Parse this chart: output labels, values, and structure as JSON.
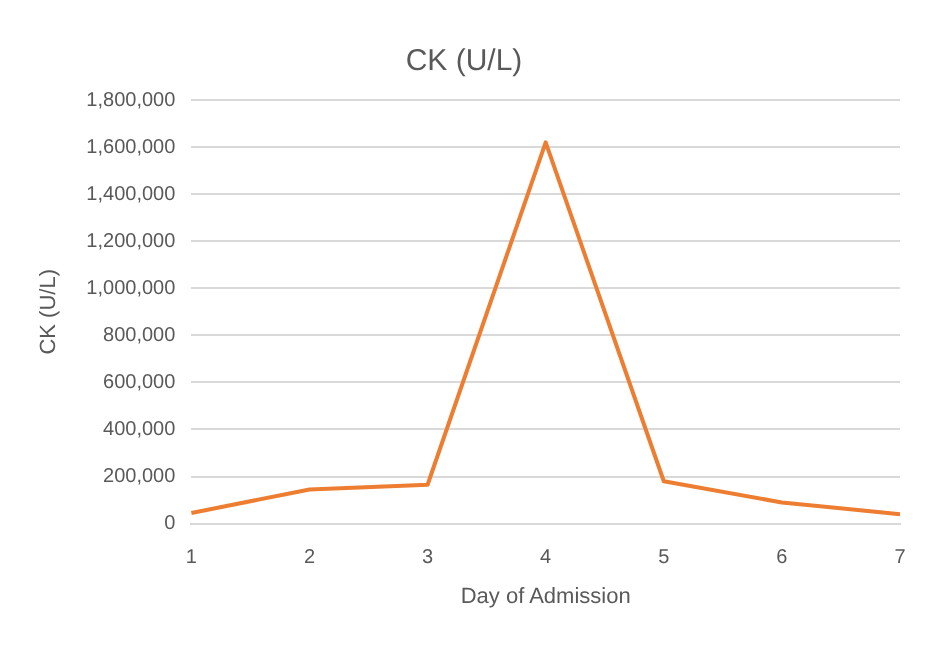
{
  "chart_data": {
    "type": "line",
    "title": "CK (U/L)",
    "xlabel": "Day of Admission",
    "ylabel": "CK (U/L)",
    "categories": [
      "1",
      "2",
      "3",
      "4",
      "5",
      "6",
      "7"
    ],
    "series": [
      {
        "color": "#ed7d31",
        "values": [
          45000,
          145000,
          165000,
          1620000,
          180000,
          90000,
          40000
        ]
      }
    ],
    "ylim": [
      0,
      1800000
    ],
    "yticks": [
      {
        "value": 0,
        "label": "0"
      },
      {
        "value": 200000,
        "label": "200,000"
      },
      {
        "value": 400000,
        "label": "400,000"
      },
      {
        "value": 600000,
        "label": "600,000"
      },
      {
        "value": 800000,
        "label": "800,000"
      },
      {
        "value": 1000000,
        "label": "1,000,000"
      },
      {
        "value": 1200000,
        "label": "1,200,000"
      },
      {
        "value": 1400000,
        "label": "1,400,000"
      },
      {
        "value": 1600000,
        "label": "1,600,000"
      },
      {
        "value": 1800000,
        "label": "1,800,000"
      }
    ],
    "grid": "y",
    "legend": false,
    "marker": "none",
    "line_style": "solid"
  }
}
